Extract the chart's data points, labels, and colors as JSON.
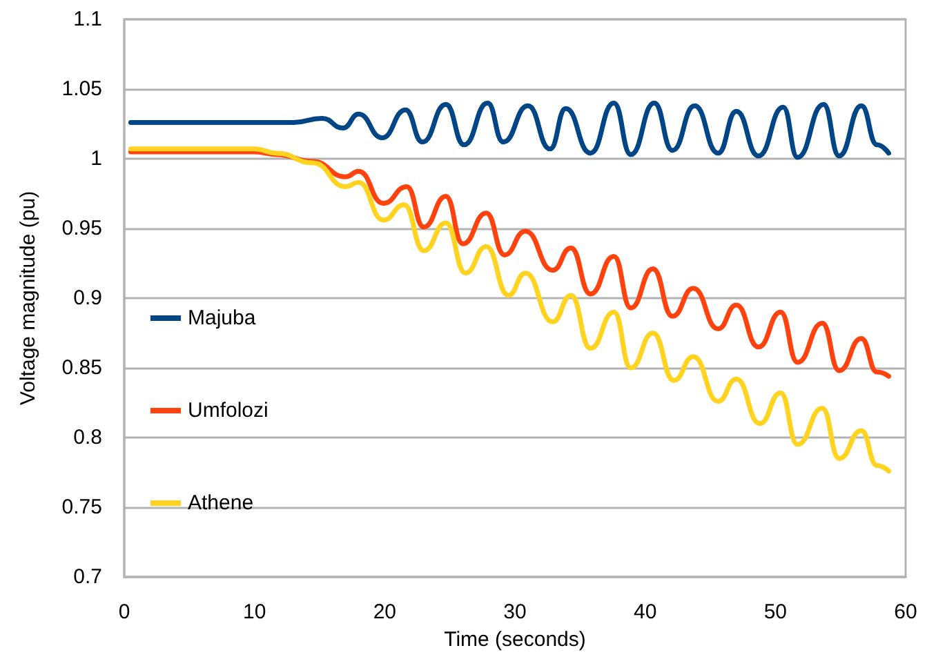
{
  "chart_data": {
    "type": "line",
    "xlabel": "Time (seconds)",
    "ylabel": "Voltage magnitude (pu)",
    "xlim": [
      0,
      60
    ],
    "xticks": [
      0,
      10,
      20,
      30,
      40,
      50,
      60
    ],
    "ylim": [
      0.7,
      1.1
    ],
    "yticks": [
      0.7,
      0.75,
      0.8,
      0.85,
      0.9,
      0.95,
      1,
      1.05,
      1.1
    ],
    "grid": "y",
    "legend": "left",
    "marker": "none",
    "line_style": "solid",
    "series": [
      {
        "name": "Majuba",
        "color": "#004586",
        "x": [
          0.5,
          13,
          15.2,
          16.8,
          18,
          19.8,
          21.6,
          22.9,
          24.7,
          26.1,
          27.9,
          29.1,
          31,
          32.7,
          33.9,
          35.8,
          37.6,
          38.9,
          40.7,
          42.1,
          43.8,
          45.6,
          47,
          48.7,
          50.6,
          51.7,
          53.7,
          54.9,
          56.6,
          57.8,
          58.7
        ],
        "values": [
          1.026,
          1.026,
          1.029,
          1.022,
          1.032,
          1.015,
          1.035,
          1.012,
          1.039,
          1.01,
          1.04,
          1.012,
          1.038,
          1.007,
          1.036,
          1.004,
          1.04,
          1.003,
          1.04,
          1.006,
          1.038,
          1.004,
          1.034,
          1.002,
          1.037,
          1.001,
          1.039,
          1.002,
          1.038,
          1.01,
          1.004
        ]
      },
      {
        "name": "Umfolozi",
        "color": "#ff420e",
        "x": [
          0.5,
          10,
          11.7,
          14.5,
          17,
          18,
          19.9,
          21.7,
          23,
          24.7,
          26,
          27.8,
          29.2,
          30.8,
          32.9,
          34.3,
          35.8,
          37.6,
          38.9,
          40.6,
          42.1,
          43.7,
          45.6,
          47,
          48.7,
          50.4,
          51.7,
          53.6,
          54.9,
          56.6,
          57.8,
          58.7
        ],
        "values": [
          1.005,
          1.005,
          1.003,
          0.998,
          0.987,
          0.991,
          0.968,
          0.98,
          0.951,
          0.973,
          0.939,
          0.961,
          0.931,
          0.948,
          0.92,
          0.936,
          0.903,
          0.93,
          0.893,
          0.921,
          0.887,
          0.907,
          0.878,
          0.895,
          0.865,
          0.89,
          0.854,
          0.882,
          0.848,
          0.871,
          0.847,
          0.844
        ]
      },
      {
        "name": "Athene",
        "color": "#ffd320",
        "x": [
          0.5,
          10,
          11.7,
          14.5,
          17,
          18,
          19.9,
          21.5,
          23,
          24.7,
          26.2,
          27.8,
          29.5,
          30.8,
          32.9,
          34.3,
          35.8,
          37.6,
          38.9,
          40.6,
          42.2,
          43.7,
          45.6,
          47,
          48.8,
          50.4,
          51.7,
          53.6,
          54.9,
          56.6,
          57.8,
          58.7
        ],
        "values": [
          1.007,
          1.007,
          1.004,
          0.997,
          0.98,
          0.983,
          0.956,
          0.967,
          0.934,
          0.954,
          0.918,
          0.937,
          0.902,
          0.918,
          0.883,
          0.902,
          0.864,
          0.89,
          0.85,
          0.875,
          0.841,
          0.858,
          0.826,
          0.842,
          0.81,
          0.832,
          0.795,
          0.821,
          0.785,
          0.805,
          0.78,
          0.776
        ]
      }
    ]
  }
}
